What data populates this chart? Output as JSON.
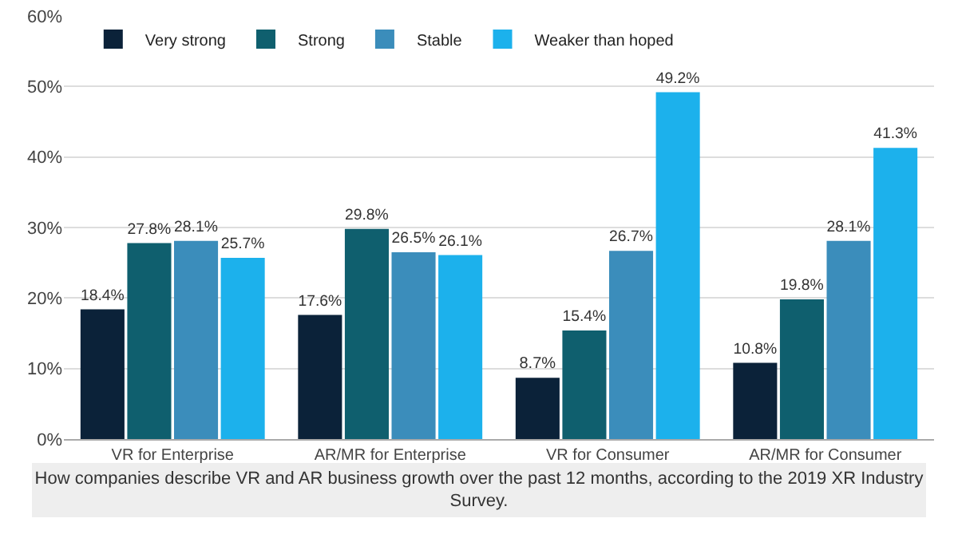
{
  "chart_data": {
    "type": "bar",
    "categories": [
      "VR for Enterprise",
      "AR/MR for Enterprise",
      "VR for Consumer",
      "AR/MR for Consumer"
    ],
    "series": [
      {
        "name": "Very strong",
        "color": "#0b2239",
        "values": [
          18.4,
          17.6,
          8.7,
          10.8
        ],
        "value_labels": [
          "18.4%",
          "17.6%",
          "8.7%",
          "10.8%"
        ]
      },
      {
        "name": "Strong",
        "color": "#0f5f6e",
        "values": [
          27.8,
          29.8,
          15.4,
          19.8
        ],
        "value_labels": [
          "27.8%",
          "29.8%",
          "15.4%",
          "19.8%"
        ]
      },
      {
        "name": "Stable",
        "color": "#3b8dbb",
        "values": [
          28.1,
          26.5,
          26.7,
          28.1
        ],
        "value_labels": [
          "28.1%",
          "26.5%",
          "26.7%",
          "28.1%"
        ]
      },
      {
        "name": "Weaker than hoped",
        "color": "#1cb1ec",
        "values": [
          25.7,
          26.1,
          49.2,
          41.3
        ],
        "value_labels": [
          "25.7%",
          "26.1%",
          "49.2%",
          "41.3%"
        ]
      }
    ],
    "ylim": [
      0,
      60
    ],
    "yticks": [
      {
        "value": 0,
        "label": "0%"
      },
      {
        "value": 10,
        "label": "10%"
      },
      {
        "value": 20,
        "label": "20%"
      },
      {
        "value": 30,
        "label": "30%"
      },
      {
        "value": 40,
        "label": "40%"
      },
      {
        "value": 50,
        "label": "50%"
      },
      {
        "value": 60,
        "label": "60%"
      }
    ],
    "grid": "y",
    "legend": "top left",
    "annotations": [
      "How companies describe VR and AR business growth over the past 12 months, according to the 2019 XR Industry Survey."
    ]
  }
}
